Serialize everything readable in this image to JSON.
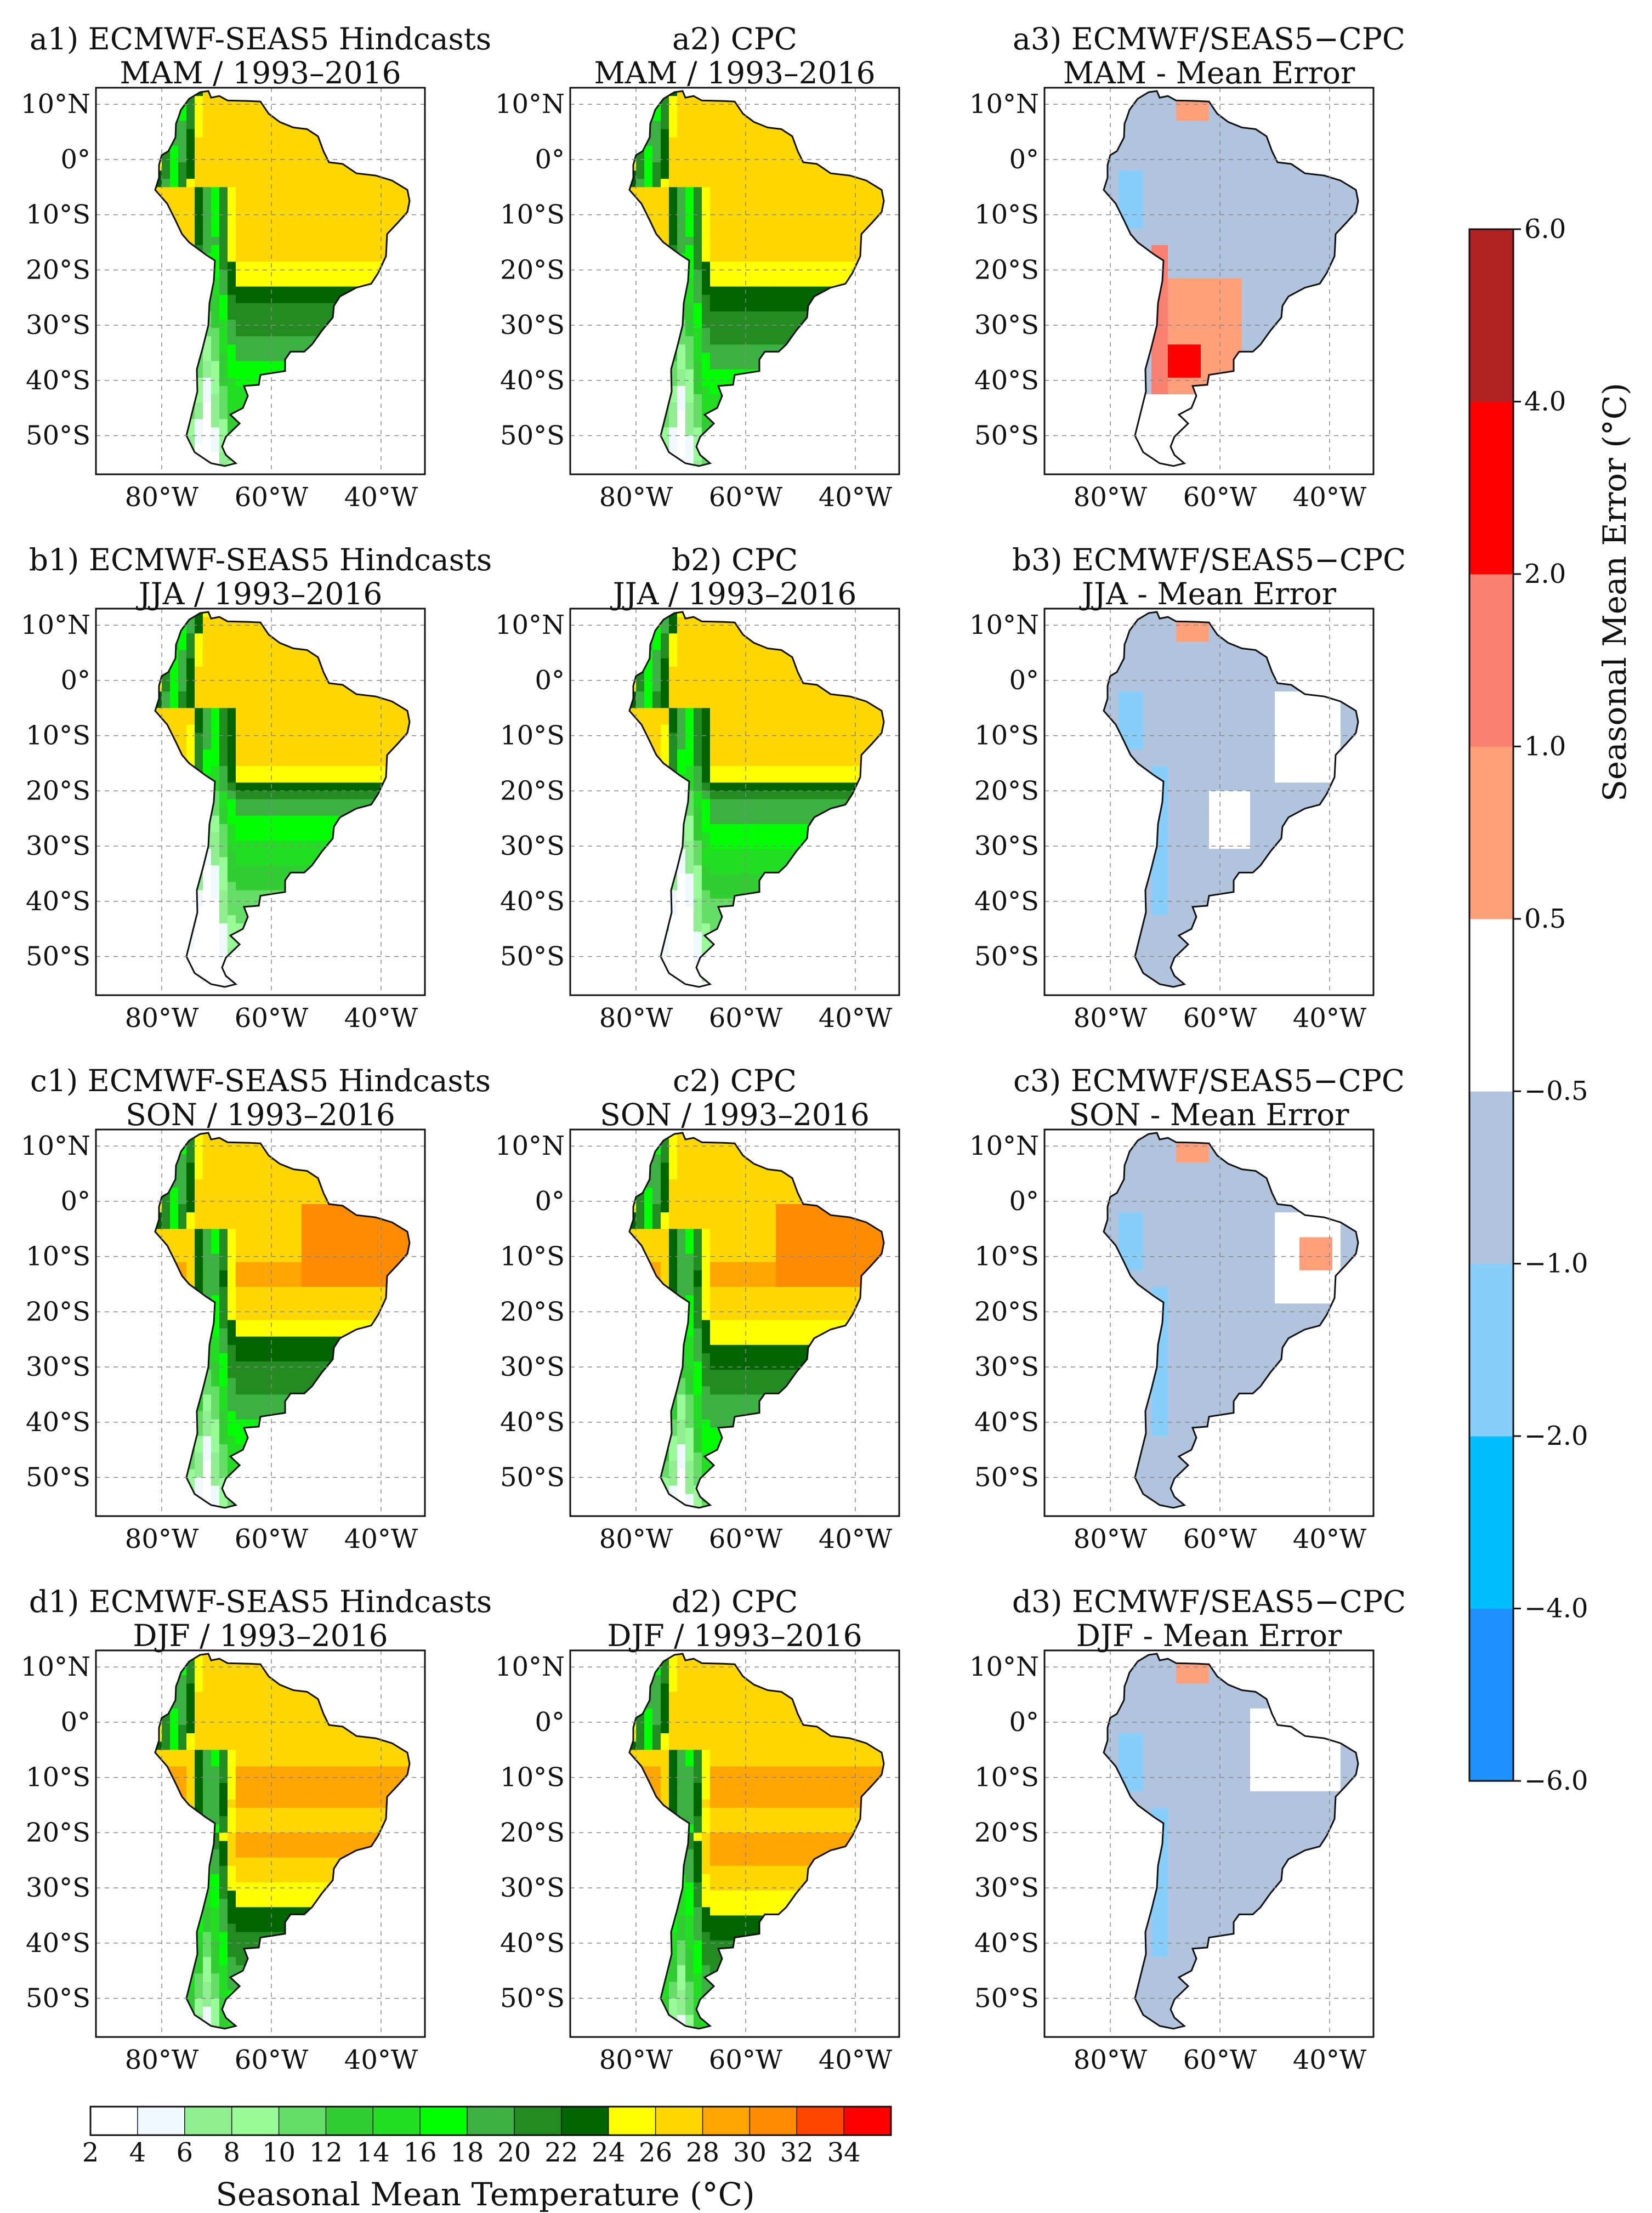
{
  "chart_data": {
    "type": "heatmap",
    "description_rows": [
      "MAM",
      "JJA",
      "SON",
      "DJF"
    ],
    "panels": [
      {
        "id": "a1",
        "title": "a1) ECMWF-SEAS5 Hindcasts",
        "subtitle": "MAM / 1993–2016",
        "kind": "temperature",
        "season": "MAM",
        "source": "seas5"
      },
      {
        "id": "a2",
        "title": "a2) CPC",
        "subtitle": "MAM / 1993–2016",
        "kind": "temperature",
        "season": "MAM",
        "source": "cpc"
      },
      {
        "id": "a3",
        "title": "a3) ECMWF/SEAS5−CPC",
        "subtitle": "MAM - Mean Error",
        "kind": "error",
        "season": "MAM"
      },
      {
        "id": "b1",
        "title": "b1) ECMWF-SEAS5 Hindcasts",
        "subtitle": "JJA / 1993–2016",
        "kind": "temperature",
        "season": "JJA",
        "source": "seas5"
      },
      {
        "id": "b2",
        "title": "b2) CPC",
        "subtitle": "JJA / 1993–2016",
        "kind": "temperature",
        "season": "JJA",
        "source": "cpc"
      },
      {
        "id": "b3",
        "title": "b3) ECMWF/SEAS5−CPC",
        "subtitle": "JJA - Mean Error",
        "kind": "error",
        "season": "JJA"
      },
      {
        "id": "c1",
        "title": "c1) ECMWF-SEAS5 Hindcasts",
        "subtitle": "SON / 1993–2016",
        "kind": "temperature",
        "season": "SON",
        "source": "seas5"
      },
      {
        "id": "c2",
        "title": "c2) CPC",
        "subtitle": "SON / 1993–2016",
        "kind": "temperature",
        "season": "SON",
        "source": "cpc"
      },
      {
        "id": "c3",
        "title": "c3) ECMWF/SEAS5−CPC",
        "subtitle": "SON - Mean Error",
        "kind": "error",
        "season": "SON"
      },
      {
        "id": "d1",
        "title": "d1) ECMWF-SEAS5 Hindcasts",
        "subtitle": "DJF / 1993–2016",
        "kind": "temperature",
        "season": "DJF",
        "source": "seas5"
      },
      {
        "id": "d2",
        "title": "d2) CPC",
        "subtitle": "DJF / 1993–2016",
        "kind": "temperature",
        "season": "DJF",
        "source": "cpc"
      },
      {
        "id": "d3",
        "title": "d3) ECMWF/SEAS5−CPC",
        "subtitle": "DJF - Mean Error",
        "kind": "error",
        "season": "DJF"
      }
    ],
    "lat_ticks": [
      "10°N",
      "0°",
      "10°S",
      "20°S",
      "30°S",
      "40°S",
      "50°S"
    ],
    "lat_values": [
      10,
      0,
      -10,
      -20,
      -30,
      -40,
      -50
    ],
    "lon_ticks": [
      "80°W",
      "60°W",
      "40°W"
    ],
    "lon_values": [
      -80,
      -60,
      -40
    ],
    "lat_range": [
      -57,
      13
    ],
    "lon_range": [
      -92,
      -32
    ],
    "temperature_colorbar": {
      "label": "Seasonal Mean Temperature (°C)",
      "ticks": [
        "2",
        "4",
        "6",
        "8",
        "10",
        "12",
        "14",
        "16",
        "18",
        "20",
        "22",
        "24",
        "26",
        "28",
        "30",
        "32",
        "34"
      ],
      "colors": [
        "#ffffff",
        "#f0f8ff",
        "#90ee90",
        "#98fb98",
        "#66dd66",
        "#32cd32",
        "#22dd22",
        "#00ff00",
        "#3cb043",
        "#228b22",
        "#006400",
        "#ffff00",
        "#ffd700",
        "#ffa500",
        "#ff8c00",
        "#ff4500",
        "#ff0000"
      ]
    },
    "error_colorbar": {
      "label": "Seasonal Mean Error (°C)",
      "ticks": [
        "−6.0",
        "−4.0",
        "−2.0",
        "−1.0",
        "−0.5",
        "0.5",
        "1.0",
        "2.0",
        "4.0",
        "6.0"
      ],
      "colors": [
        "#1e90ff",
        "#00bfff",
        "#87cefa",
        "#b0c4de",
        "#ffffff",
        "#ffa07a",
        "#fa8072",
        "#ff0000",
        "#b22222"
      ]
    }
  }
}
